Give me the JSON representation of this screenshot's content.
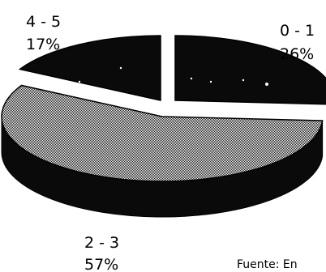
{
  "chart_data": {
    "type": "pie",
    "style": "3d-exploded",
    "slices": [
      {
        "label": "0 - 1",
        "value": 26,
        "value_label": "26%",
        "color": "#0a0a0a"
      },
      {
        "label": "2 - 3",
        "value": 57,
        "value_label": "57%",
        "color": "#c9c9c9"
      },
      {
        "label": "4 - 5",
        "value": 17,
        "value_label": "17%",
        "color": "#0a0a0a"
      }
    ],
    "source": "Fuente: En"
  }
}
